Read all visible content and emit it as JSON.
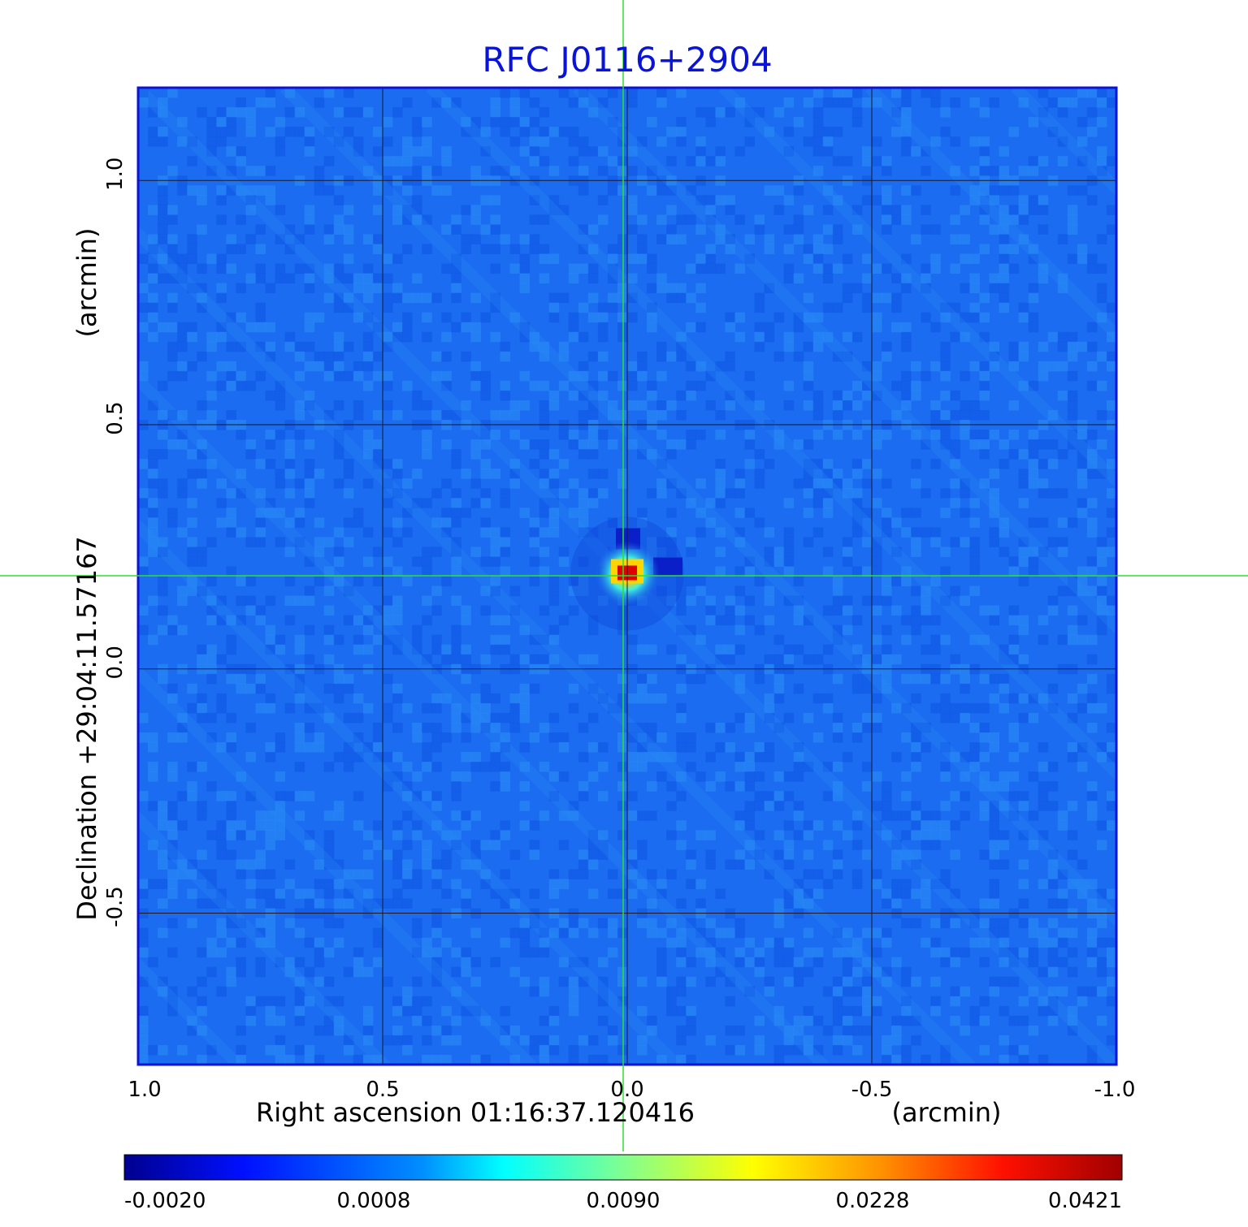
{
  "chart_data": {
    "type": "heatmap",
    "title": "RFC J0116+2904",
    "xlabel": "Right ascension  01:16:37.120416",
    "xunit": "(arcmin)",
    "ylabel": "Declination  +29:04:11.57167",
    "yunit": "(arcmin)",
    "x_ticks": [
      "1.0",
      "0.5",
      "0.0",
      "-0.5",
      "-1.0"
    ],
    "y_ticks": [
      "1.0",
      "0.5",
      "0.0",
      "-0.5"
    ],
    "xlim": [
      1.0,
      -1.0
    ],
    "ylim": [
      -0.81,
      1.19
    ],
    "grid": true,
    "source": {
      "x": 0.0,
      "y": 0.195,
      "peak": 0.0421
    },
    "colorbar": {
      "ticks": [
        "-0.0020",
        "0.0008",
        "0.0090",
        "0.0228",
        "0.0421"
      ],
      "colormap": "jet"
    },
    "colors": {
      "background_field": "#1b6cf0",
      "title": "#0a14d8",
      "frame": "#0a14d8",
      "crosshair": "#2fe02f",
      "grid": "#1a1a2a"
    }
  }
}
